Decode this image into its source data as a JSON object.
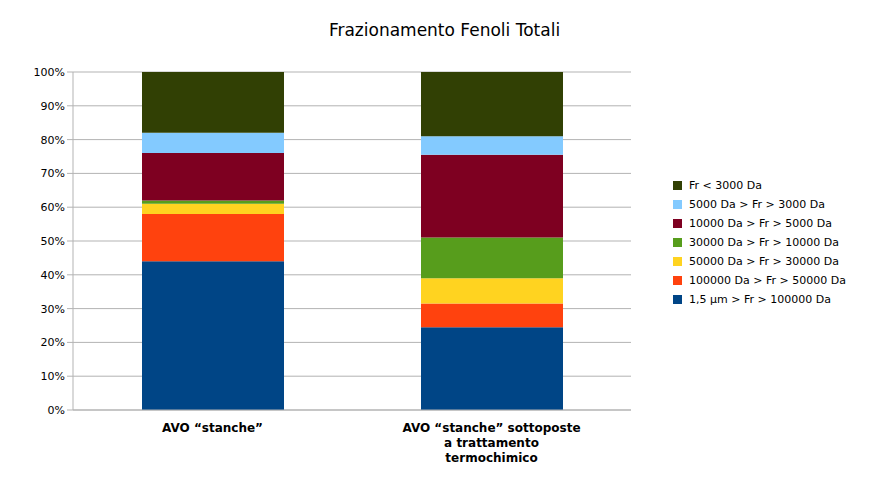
{
  "chart_data": {
    "type": "bar",
    "title": "Frazionamento Fenoli Totali",
    "categories": [
      "AVO “stanche”",
      "AVO “stanche” sottoposte a trattamento termochimico"
    ],
    "series": [
      {
        "name": "1,5 µm > Fr > 100000 Da",
        "color": "#004586",
        "values": [
          44,
          24.5
        ]
      },
      {
        "name": "100000 Da > Fr > 50000 Da",
        "color": "#ff420e",
        "values": [
          14,
          7
        ]
      },
      {
        "name": "50000 Da > Fr > 30000 Da",
        "color": "#ffd320",
        "values": [
          3,
          7.5
        ]
      },
      {
        "name": "30000 Da > Fr > 10000 Da",
        "color": "#579d1c",
        "values": [
          1,
          12
        ]
      },
      {
        "name": "10000 Da > Fr > 5000 Da",
        "color": "#7e0021",
        "values": [
          14,
          24.5
        ]
      },
      {
        "name": "5000 Da > Fr > 3000 Da",
        "color": "#83caff",
        "values": [
          6,
          5.5
        ]
      },
      {
        "name": "Fr < 3000 Da",
        "color": "#314004",
        "values": [
          18,
          19
        ]
      }
    ],
    "ylim": [
      0,
      100
    ],
    "yticks": [
      {
        "value": 0,
        "label": "0%"
      },
      {
        "value": 10,
        "label": "10%"
      },
      {
        "value": 20,
        "label": "20%"
      },
      {
        "value": 30,
        "label": "30%"
      },
      {
        "value": 40,
        "label": "40%"
      },
      {
        "value": 50,
        "label": "50%"
      },
      {
        "value": 60,
        "label": "60%"
      },
      {
        "value": 70,
        "label": "70%"
      },
      {
        "value": 80,
        "label": "80%"
      },
      {
        "value": 90,
        "label": "90%"
      },
      {
        "value": 100,
        "label": "100%"
      }
    ],
    "grid": true,
    "stacked": true,
    "legend": "right"
  }
}
